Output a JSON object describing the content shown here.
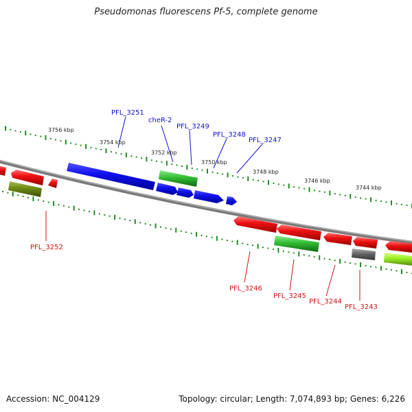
{
  "title": "Pseudomonas fluorescens Pf-5, complete genome",
  "footer": {
    "accession_label": "Accession:",
    "accession": "NC_004129",
    "summary": "Topology: circular; Length: 7,074,893 bp; Genes: 6,226"
  },
  "colors": {
    "backbone": "#8a8a8a",
    "tick": "#1f8a1f",
    "forward_label": "#1010d0",
    "reverse_label": "#d01010",
    "red": "#ee1111",
    "blue": "#1111ee",
    "green": "#33cc33",
    "olive": "#6e8a14",
    "grey": "#666666",
    "lime": "#99ee22"
  },
  "ticks": [
    {
      "kbp": 3756,
      "label": "3756 kbp"
    },
    {
      "kbp": 3754,
      "label": "3754 kbp"
    },
    {
      "kbp": 3752,
      "label": "3752 kbp"
    },
    {
      "kbp": 3750,
      "label": "3750 kbp"
    },
    {
      "kbp": 3748,
      "label": "3748 kbp"
    },
    {
      "kbp": 3746,
      "label": "3746 kbp"
    },
    {
      "kbp": 3744,
      "label": "3744 kbp"
    }
  ],
  "forward_labels": [
    "PFL_3251",
    "cheR-2",
    "PFL_3249",
    "PFL_3248",
    "PFL_3247"
  ],
  "reverse_labels": [
    "PFL_3252",
    "PFL_3246",
    "PFL_3245",
    "PFL_3244",
    "PFL_3243"
  ]
}
